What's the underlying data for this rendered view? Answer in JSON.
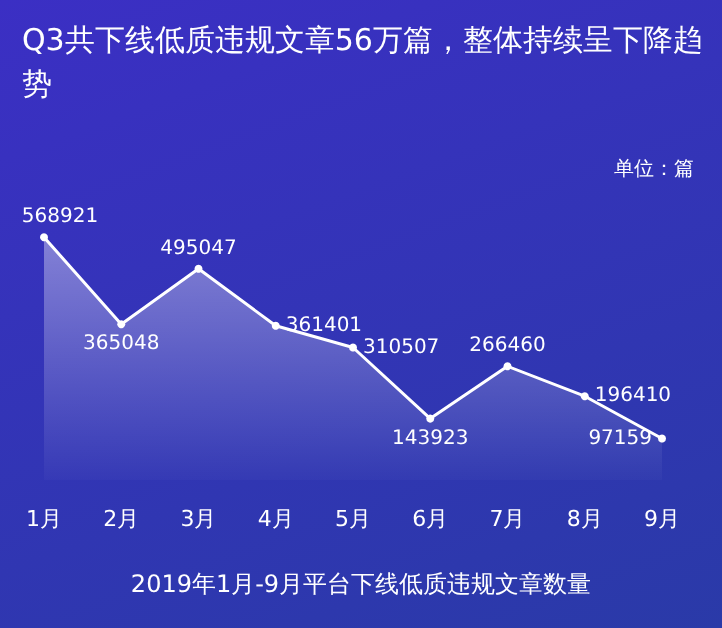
{
  "chart_data": {
    "type": "area",
    "title": "Q3共下线低质违规文章56万篇，整体持续呈下降趋势",
    "annotations": [
      "单位：篇",
      "2019年1月-9月平台下线低质违规文章数量"
    ],
    "categories": [
      "1月",
      "2月",
      "3月",
      "4月",
      "5月",
      "6月",
      "7月",
      "8月",
      "9月"
    ],
    "series": [
      {
        "color": "#ffffff",
        "values": [
          568921,
          365048,
          495047,
          361401,
          310507,
          143923,
          266460,
          196410,
          97159
        ]
      }
    ],
    "data_labels": true,
    "marker": "circle",
    "grid": false
  }
}
